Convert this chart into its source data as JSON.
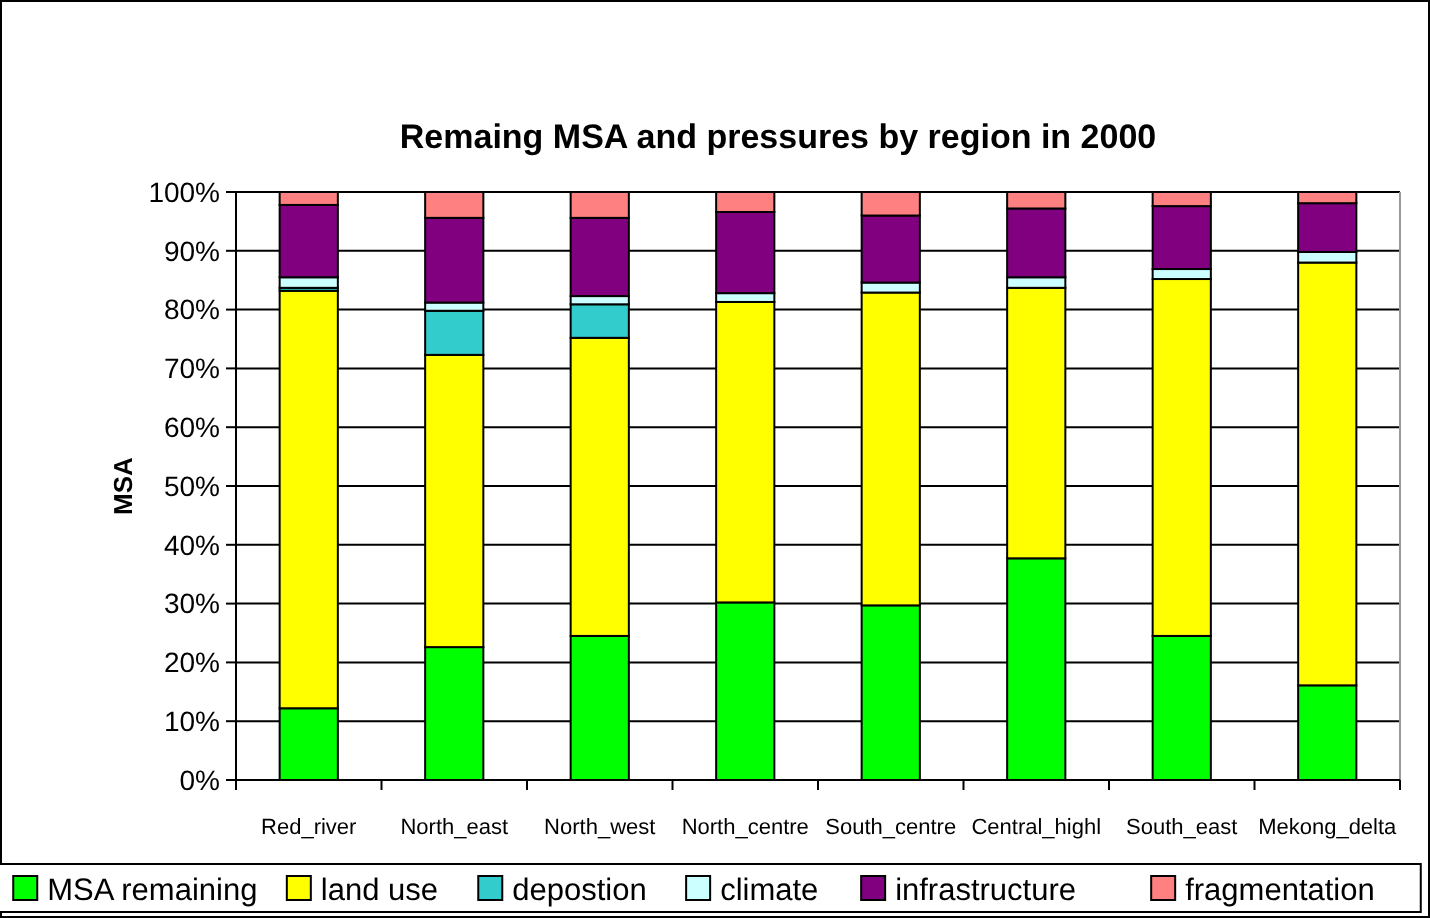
{
  "chart_data": {
    "type": "bar",
    "stacked": true,
    "title": "Remaing MSA and pressures by region in 2000",
    "ylabel": "MSA",
    "categories": [
      "Red_river",
      "North_east",
      "North_west",
      "North_centre",
      "South_centre",
      "Central_highl",
      "South_east",
      "Mekong_delta"
    ],
    "series": [
      {
        "name": "MSA remaining",
        "color": "#00ff00",
        "values": [
          12.2,
          22.6,
          24.5,
          30.2,
          29.7,
          37.7,
          24.5,
          16.1
        ]
      },
      {
        "name": "land use",
        "color": "#ffff00",
        "values": [
          71.0,
          49.7,
          50.7,
          51.1,
          53.2,
          46.0,
          60.7,
          71.9
        ]
      },
      {
        "name": "depostion",
        "color": "#33cccc",
        "values": [
          0.5,
          7.5,
          5.7,
          0,
          0,
          0,
          0,
          0
        ]
      },
      {
        "name": "climate",
        "color": "#ccffff",
        "values": [
          1.8,
          1.4,
          1.4,
          1.5,
          1.7,
          1.8,
          1.7,
          1.8
        ]
      },
      {
        "name": "infrastructure",
        "color": "#800080",
        "values": [
          12.3,
          14.4,
          13.3,
          13.8,
          11.4,
          11.7,
          10.7,
          8.3
        ]
      },
      {
        "name": "fragmentation",
        "color": "#ff8080",
        "values": [
          2.2,
          4.4,
          4.4,
          3.4,
          4.0,
          2.8,
          2.4,
          1.9
        ]
      }
    ],
    "ylim": [
      0,
      100
    ],
    "yticks": [
      {
        "value": 0,
        "label": "0%"
      },
      {
        "value": 10,
        "label": "10%"
      },
      {
        "value": 20,
        "label": "20%"
      },
      {
        "value": 30,
        "label": "30%"
      },
      {
        "value": 40,
        "label": "40%"
      },
      {
        "value": 50,
        "label": "50%"
      },
      {
        "value": 60,
        "label": "60%"
      },
      {
        "value": 70,
        "label": "70%"
      },
      {
        "value": 80,
        "label": "80%"
      },
      {
        "value": 90,
        "label": "90%"
      },
      {
        "value": 100,
        "label": "100%"
      }
    ],
    "grid": "y",
    "legend": "bottom"
  }
}
